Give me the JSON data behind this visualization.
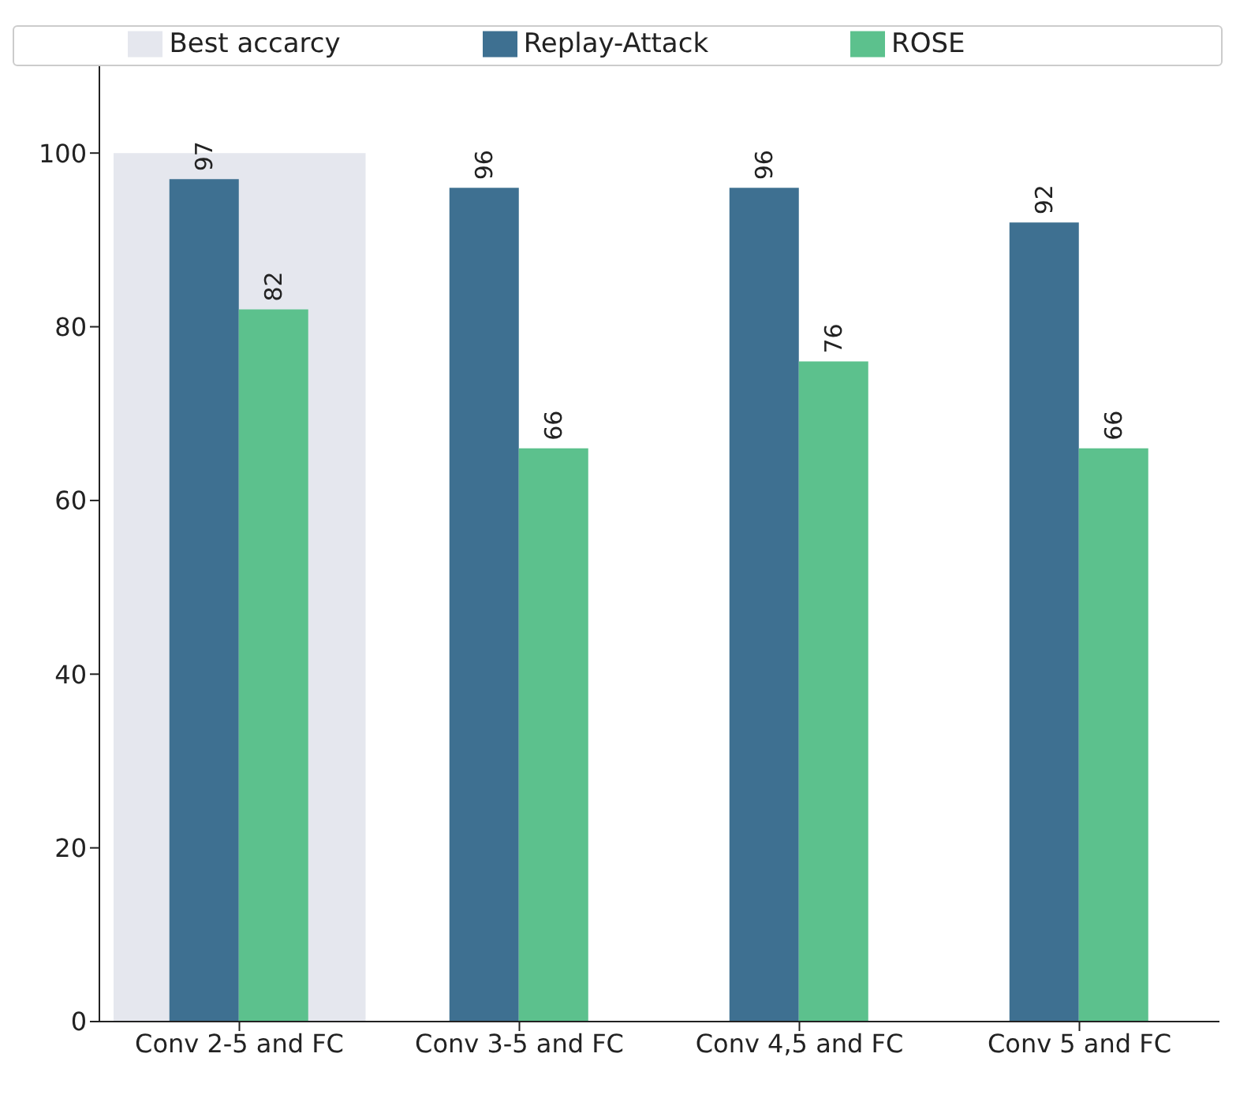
{
  "chart_data": {
    "type": "bar",
    "categories": [
      "Conv 2-5 and FC",
      "Conv 3-5 and FC",
      "Conv 4,5 and FC",
      "Conv 5 and FC"
    ],
    "series": [
      {
        "name": "Best accarcy",
        "color": "#e5e7ee",
        "x": [
          "Conv 2-5 and FC"
        ],
        "values": [
          100
        ]
      },
      {
        "name": "Replay-Attack",
        "color": "#3e7091",
        "values": [
          97,
          96,
          96,
          92
        ],
        "value_labels": [
          "97",
          "96",
          "96",
          "92"
        ]
      },
      {
        "name": "ROSE",
        "color": "#5cc18d",
        "values": [
          82,
          66,
          76,
          66
        ],
        "value_labels": [
          "82",
          "66",
          "76",
          "66"
        ]
      }
    ],
    "ylim": [
      0,
      110
    ],
    "yticks": [
      0,
      20,
      40,
      60,
      80,
      100
    ],
    "grid": false,
    "legend": "top"
  }
}
